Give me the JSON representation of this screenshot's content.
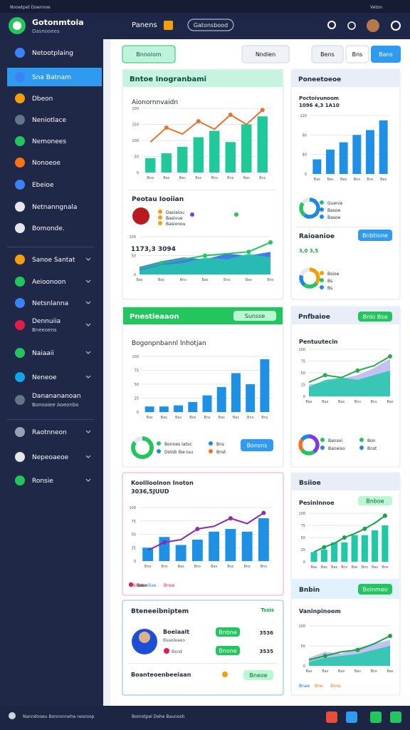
{
  "status": {
    "left": "Nnoetpet Doennoe",
    "right": "Veton"
  },
  "header": {
    "app": "Gotonmtoia",
    "sub": "Dasnooees",
    "tab": "Panens",
    "search": "Gatonsbood"
  },
  "sidebar": {
    "items": [
      {
        "label": "Netootplaing"
      },
      {
        "label": "Sna Batnam"
      },
      {
        "label": "Dbeon"
      },
      {
        "label": "Neniotlace"
      },
      {
        "label": "Nemonees"
      },
      {
        "label": "Nonoeoe"
      },
      {
        "label": "Ebeioe"
      },
      {
        "label": "Netnanngnala"
      },
      {
        "label": "Bomonde."
      },
      {
        "label": "Sanoe Santat"
      },
      {
        "label": "Aeioonoon"
      },
      {
        "label": "Netsnlanna"
      },
      {
        "label": "Dennuiia",
        "sub": "Bneeoens"
      },
      {
        "label": "Naiaaii"
      },
      {
        "label": "Neneoe"
      },
      {
        "label": "Dananananoan",
        "sub": "Bonoaiee Aoeonbo"
      },
      {
        "label": "Raotnneon"
      },
      {
        "label": "Nepeoaeoe"
      },
      {
        "label": "Ronsie"
      }
    ]
  },
  "toolbar": {
    "buttons": [
      "Bnnoiom",
      "Nndien",
      "Bens",
      "Bns",
      "Bans"
    ]
  },
  "cards": [
    {
      "title": "Bntoe Inogranbami",
      "heading": "Aionornnvaidn",
      "section": "Peotau Iooiian",
      "legend": [
        "Dasiaiou",
        "Basivue",
        "Basionou"
      ],
      "value": "1173,3 3094",
      "chart": {
        "type": "bar",
        "categories": [
          "Bna",
          "Bas",
          "Bac",
          "Bss",
          "Bns",
          "Bns",
          "Bas",
          "Bnc"
        ],
        "ylim": [
          0,
          200
        ],
        "yticks": [
          0,
          50,
          100,
          150,
          200
        ],
        "series": [
          {
            "color": "#1fc99a",
            "values": [
              45,
              60,
              80,
              110,
              130,
              95,
              150,
              175
            ]
          }
        ],
        "line": {
          "color": "#e8742c",
          "values": [
            95,
            140,
            120,
            160,
            135,
            180,
            150,
            195
          ]
        }
      },
      "chart2": {
        "type": "area",
        "categories": [
          "Bas",
          "Bac",
          "Bns",
          "Bas",
          "Bns",
          "Bas",
          "Bns"
        ],
        "ylim": [
          0,
          100
        ],
        "yticks": [
          0,
          50,
          100
        ],
        "series": [
          {
            "color": "#2563eb",
            "values": [
              20,
              35,
              45,
              40,
              55,
              50,
              60
            ]
          },
          {
            "color": "#22c7a9",
            "values": [
              10,
              25,
              30,
              45,
              40,
              55,
              45
            ]
          }
        ],
        "line": {
          "color": "#22c55e",
          "values": [
            15,
            30,
            40,
            50,
            55,
            60,
            85
          ]
        }
      }
    },
    {
      "title": "Poneetoeoe",
      "heading": "Poctoivunoom",
      "value": "1096 4,3 1A10",
      "legend": [
        "Guenie",
        "Basoe",
        "Basoe"
      ],
      "section": "Raioanioe",
      "button": "Bnbtione",
      "value2": "3,0 3,5",
      "legend2": [
        "Bsioe",
        "Bs",
        "Bs"
      ],
      "chart": {
        "type": "bar",
        "categories": [
          "Bas",
          "Bes",
          "Bas",
          "Bns",
          "Bns",
          "Bas"
        ],
        "ylim": [
          0,
          120
        ],
        "yticks": [
          0,
          40,
          80,
          120
        ],
        "series": [
          {
            "color": "#1e90e6",
            "values": [
              30,
              50,
              65,
              80,
              90,
              110
            ]
          }
        ]
      },
      "pie": {
        "type": "pie",
        "values": [
          60,
          25,
          15
        ],
        "colors": [
          "#1e88e5",
          "#22c55e",
          "#e5e7eb"
        ]
      },
      "pie2": {
        "type": "pie",
        "values": [
          35,
          25,
          20,
          20
        ],
        "colors": [
          "#f59e0b",
          "#22c55e",
          "#1e88e5",
          "#e5e7eb"
        ]
      }
    },
    {
      "title": "Pnestieaaon",
      "button": "Sunsse",
      "heading": "Bogonpnbannl lnhotjan",
      "legend": [
        "Bonnes Iatoc",
        "Dotsb Ibe Iuu"
      ],
      "extra": [
        "Bns",
        "Bnst"
      ],
      "button2": "Bonsns",
      "chart": {
        "type": "bar",
        "categories": [
          "Bas",
          "Bas",
          "Bas",
          "Bos",
          "Bns",
          "Bas",
          "Bas",
          "Bns",
          "Bns"
        ],
        "ylim": [
          0,
          100
        ],
        "yticks": [
          0,
          25,
          50,
          75,
          100
        ],
        "series": [
          {
            "color": "#1e90e6",
            "values": [
              10,
              10,
              12,
              18,
              30,
              45,
              70,
              50,
              95
            ]
          }
        ]
      },
      "pie": {
        "type": "pie",
        "values": [
          85,
          15
        ],
        "colors": [
          "#22c55e",
          "#e5e7eb"
        ]
      }
    },
    {
      "title": "Pnfbaioe",
      "button": "Bnlo Bsa",
      "heading": "Pentuutecin",
      "legend": [
        "Bansoi",
        "Baneiso"
      ],
      "extra": [
        "Bon",
        "Bnst"
      ],
      "chart": {
        "type": "area",
        "categories": [
          "Bas",
          "Bas",
          "Bas",
          "Bns",
          "Bns",
          "Bas"
        ],
        "ylim": [
          0,
          100
        ],
        "yticks": [
          0,
          25,
          50,
          75,
          100
        ],
        "series": [
          {
            "color": "#b9b5f0",
            "values": [
              25,
              30,
              38,
              45,
              60,
              80
            ]
          },
          {
            "color": "#22c7a9",
            "values": [
              20,
              35,
              40,
              35,
              45,
              55
            ]
          }
        ],
        "line": {
          "color": "#2fa84f",
          "values": [
            30,
            45,
            40,
            55,
            65,
            85
          ]
        }
      },
      "pie": {
        "type": "pie",
        "values": [
          40,
          25,
          20,
          15
        ],
        "colors": [
          "#7c3aed",
          "#22c55e",
          "#f97316",
          "#1e88e5"
        ]
      }
    },
    {
      "title": "Kooliloolnon Inoton",
      "value": "3036,5JUUD",
      "legend": [
        "Bnoe",
        "Bae",
        "Bnee"
      ],
      "chart": {
        "type": "bar",
        "categories": [
          "Bns",
          "Bns",
          "Bas",
          "Bns",
          "Bas",
          "Bns",
          "Bns",
          "Bns"
        ],
        "ylim": [
          0,
          100
        ],
        "yticks": [
          0,
          25,
          50,
          75,
          100
        ],
        "series": [
          {
            "color": "#1e90e6",
            "values": [
              25,
              45,
              30,
              40,
              55,
              60,
              55,
              80
            ]
          }
        ],
        "line": {
          "color": "#8b2bb0",
          "values": [
            20,
            35,
            40,
            60,
            65,
            80,
            70,
            90
          ]
        }
      }
    },
    {
      "title": "Bsiioe",
      "heading": "Pesinlnnoe",
      "button": "Bnboe",
      "section": "Bnbin",
      "button2": "Boinmeo",
      "heading2": "Vaninpinoom",
      "legend": [
        "Bnae",
        "Bne",
        "Bsne"
      ],
      "chart": {
        "type": "bar",
        "categories": [
          "Bas",
          "Bas",
          "Bas",
          "Bnc",
          "Bas",
          "Bns",
          "Bas",
          "Bns"
        ],
        "ylim": [
          0,
          100
        ],
        "yticks": [
          0,
          25,
          50,
          75,
          100
        ],
        "series": [
          {
            "color": "#1fc9a8",
            "values": [
              20,
              25,
              40,
              40,
              55,
              55,
              65,
              75
            ]
          }
        ],
        "line": {
          "color": "#16a34a",
          "values": [
            20,
            30,
            38,
            50,
            58,
            68,
            80,
            95
          ]
        }
      },
      "chart2": {
        "type": "area",
        "categories": [
          "Bas",
          "Bas",
          "Bas",
          "Bas",
          "Bns",
          "Bas"
        ],
        "ylim": [
          0,
          100
        ],
        "yticks": [
          0,
          50,
          100
        ],
        "series": [
          {
            "color": "#b9b5f0",
            "values": [
              20,
              35,
              30,
              45,
              55,
              65
            ]
          },
          {
            "color": "#22c7a9",
            "values": [
              10,
              20,
              25,
              30,
              40,
              50
            ]
          }
        ],
        "line": {
          "color": "#16a34a",
          "values": [
            15,
            25,
            35,
            40,
            55,
            75
          ]
        }
      }
    },
    {
      "title": "Bteneeibniptem",
      "tag": "Tssis",
      "name": "Boeiaalt",
      "role": "Bsaoleaeo",
      "note": "Bsnd",
      "button": "Bnbne",
      "button2": "Bnone",
      "val1": "3536",
      "val2": "3535",
      "bottom": "Boanteoenbeeiaan",
      "button3": "Bneoe"
    }
  ],
  "footer": {
    "text": "Nanndnoeu Bonnonnehe nesroop",
    "text2": "Bomotpei Dehe Baunosh"
  }
}
